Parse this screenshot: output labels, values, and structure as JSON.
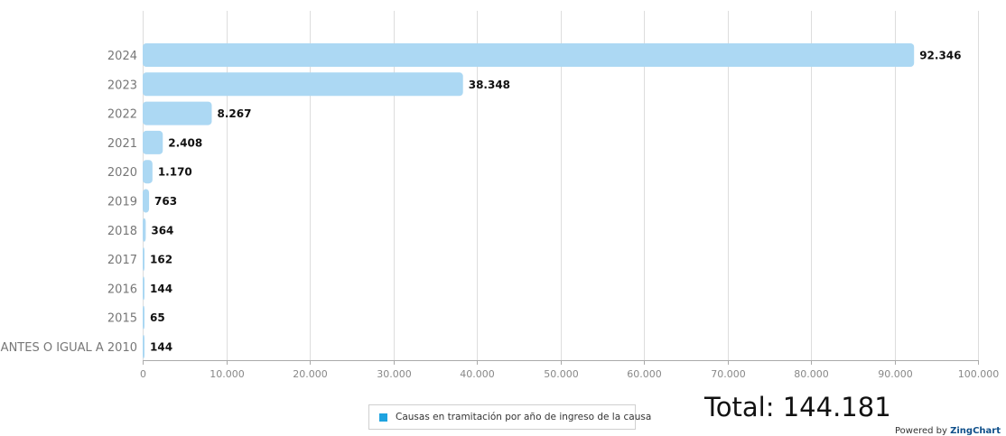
{
  "chart_data": {
    "type": "bar",
    "orientation": "horizontal",
    "categories": [
      "2024",
      "2023",
      "2022",
      "2021",
      "2020",
      "2019",
      "2018",
      "2017",
      "2016",
      "2015",
      "ANTES O IGUAL A 2010"
    ],
    "series": [
      {
        "name": "Causas en tramitación por año de ingreso de la causa",
        "values": [
          92346,
          38348,
          8267,
          2408,
          1170,
          763,
          364,
          162,
          144,
          65,
          144
        ],
        "value_labels": [
          "92.346",
          "38.348",
          "8.267",
          "2.408",
          "1.170",
          "763",
          "364",
          "162",
          "144",
          "65",
          "144"
        ]
      }
    ],
    "xlim": [
      0,
      100000
    ],
    "x_ticks": [
      0,
      10000,
      20000,
      30000,
      40000,
      50000,
      60000,
      70000,
      80000,
      90000,
      100000
    ],
    "x_tick_labels": [
      "0",
      "10.000",
      "20.000",
      "30.000",
      "40.000",
      "50.000",
      "60.000",
      "70.000",
      "80.000",
      "90.000",
      "100.000"
    ],
    "grid": true,
    "legend": "bottom-center",
    "title": "",
    "xlabel": "",
    "ylabel": ""
  },
  "colors": {
    "bar": "#acd8f3",
    "legend_marker": "#1ea3e0",
    "grid": "#dddddd"
  },
  "legend": {
    "label": "Causas en tramitación por año de ingreso de la causa"
  },
  "total": {
    "label": "Total: 144.181"
  },
  "footer": {
    "prefix": "Powered by",
    "brand": "ZingChart"
  }
}
